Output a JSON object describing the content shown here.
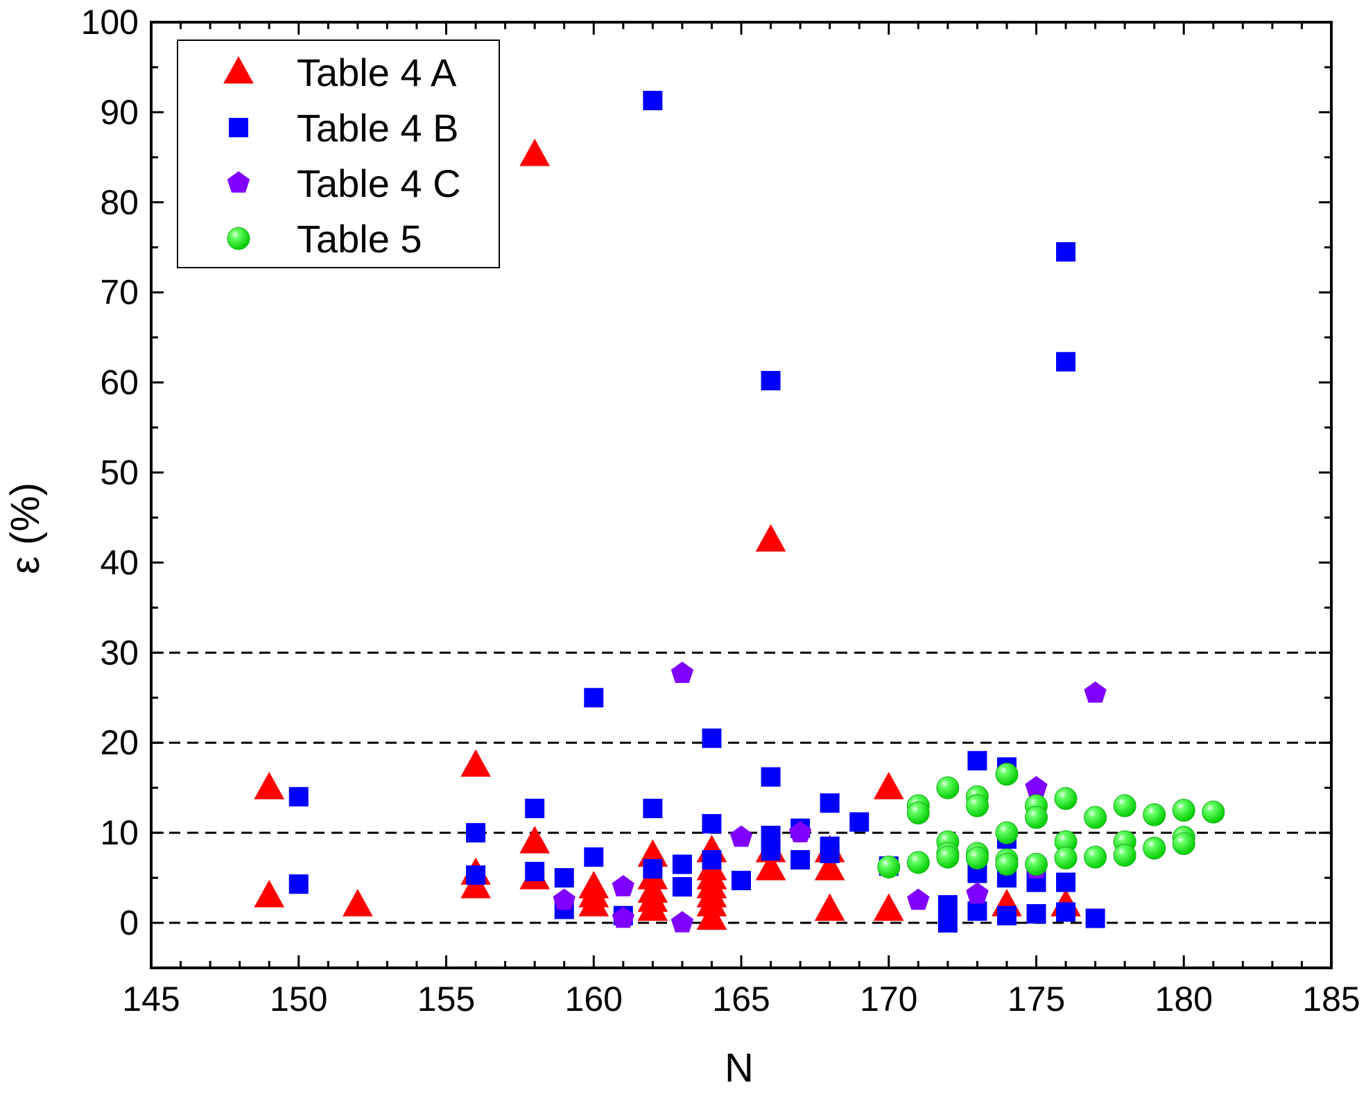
{
  "chart_data": {
    "type": "scatter",
    "title": "",
    "xlabel": "N",
    "ylabel": "ε (%)",
    "xlim": [
      145,
      185
    ],
    "ylim": [
      -5,
      100
    ],
    "x_ticks": [
      145,
      150,
      155,
      160,
      165,
      170,
      175,
      180,
      185
    ],
    "x_tick_labels": [
      "145",
      "150",
      "155",
      "160",
      "165",
      "170",
      "175",
      "180",
      "185"
    ],
    "y_ticks": [
      0,
      10,
      20,
      30,
      40,
      50,
      60,
      70,
      80,
      90,
      100
    ],
    "y_tick_labels": [
      "0",
      "10",
      "20",
      "30",
      "40",
      "50",
      "60",
      "70",
      "80",
      "90",
      "100"
    ],
    "reference_lines_y": [
      0,
      10,
      20,
      30
    ],
    "grid": false,
    "legend_position": "top-left",
    "series": [
      {
        "name": "Table 4 A",
        "marker": "triangle",
        "color": "#ff0000",
        "points": [
          [
            149,
            15
          ],
          [
            149,
            3
          ],
          [
            152,
            2
          ],
          [
            156,
            17.5
          ],
          [
            156,
            5.5
          ],
          [
            156,
            4
          ],
          [
            158,
            85.3
          ],
          [
            158,
            9
          ],
          [
            158,
            5
          ],
          [
            160,
            4
          ],
          [
            160,
            3
          ],
          [
            160,
            2
          ],
          [
            162,
            7.5
          ],
          [
            162,
            5
          ],
          [
            162,
            3.5
          ],
          [
            162,
            2.5
          ],
          [
            162,
            1.5
          ],
          [
            164,
            8
          ],
          [
            164,
            6
          ],
          [
            164,
            5
          ],
          [
            164,
            4
          ],
          [
            164,
            3
          ],
          [
            164,
            2
          ],
          [
            164,
            0.5
          ],
          [
            166,
            42.5
          ],
          [
            166,
            6
          ],
          [
            166,
            8
          ],
          [
            168,
            8
          ],
          [
            168,
            6
          ],
          [
            168,
            1.5
          ],
          [
            170,
            15
          ],
          [
            170,
            1.5
          ],
          [
            174,
            2
          ],
          [
            176,
            2
          ]
        ]
      },
      {
        "name": "Table 4 B",
        "marker": "square",
        "color": "#0000ff",
        "points": [
          [
            150,
            14
          ],
          [
            150,
            4.3
          ],
          [
            156,
            10
          ],
          [
            156,
            5.3
          ],
          [
            158,
            12.7
          ],
          [
            158,
            5.7
          ],
          [
            159,
            5
          ],
          [
            159,
            1.5
          ],
          [
            160,
            25
          ],
          [
            160,
            7.3
          ],
          [
            161,
            0.8
          ],
          [
            162,
            91.3
          ],
          [
            162,
            12.7
          ],
          [
            162,
            6
          ],
          [
            163,
            6.5
          ],
          [
            163,
            4
          ],
          [
            164,
            20.5
          ],
          [
            164,
            11
          ],
          [
            164,
            7
          ],
          [
            165,
            4.7
          ],
          [
            166,
            60.2
          ],
          [
            166,
            16.2
          ],
          [
            166,
            9.7
          ],
          [
            166,
            8
          ],
          [
            167,
            10.5
          ],
          [
            167,
            7
          ],
          [
            168,
            13.3
          ],
          [
            168,
            8.5
          ],
          [
            168,
            7.7
          ],
          [
            169,
            11.2
          ],
          [
            170,
            6.3
          ],
          [
            172,
            2
          ],
          [
            172,
            0
          ],
          [
            173,
            18
          ],
          [
            173,
            5.5
          ],
          [
            173,
            1.3
          ],
          [
            174,
            17.3
          ],
          [
            174,
            9.3
          ],
          [
            174,
            5
          ],
          [
            174,
            0.8
          ],
          [
            175,
            6.2
          ],
          [
            175,
            4.5
          ],
          [
            175,
            1
          ],
          [
            176,
            74.5
          ],
          [
            176,
            62.3
          ],
          [
            176,
            4.5
          ],
          [
            176,
            1.2
          ],
          [
            177,
            0.5
          ]
        ]
      },
      {
        "name": "Table 4 C",
        "marker": "pentagon",
        "color": "#8000ff",
        "points": [
          [
            159,
            2.5
          ],
          [
            161,
            4
          ],
          [
            161,
            0.5
          ],
          [
            163,
            27.7
          ],
          [
            163,
            0
          ],
          [
            165,
            9.5
          ],
          [
            167,
            10
          ],
          [
            171,
            2.5
          ],
          [
            173,
            3.2
          ],
          [
            175,
            15
          ],
          [
            175,
            6
          ],
          [
            177,
            25.5
          ]
        ]
      },
      {
        "name": "Table 5",
        "marker": "circle",
        "color": "#00ff00",
        "points": [
          [
            170,
            6.2
          ],
          [
            171,
            13
          ],
          [
            171,
            12.2
          ],
          [
            171,
            6.7
          ],
          [
            172,
            15
          ],
          [
            172,
            9
          ],
          [
            172,
            7.7
          ],
          [
            172,
            7.3
          ],
          [
            173,
            14
          ],
          [
            173,
            13
          ],
          [
            173,
            7.7
          ],
          [
            173,
            7.2
          ],
          [
            174,
            16.5
          ],
          [
            174,
            10
          ],
          [
            174,
            7
          ],
          [
            174,
            6.5
          ],
          [
            175,
            13
          ],
          [
            175,
            11.7
          ],
          [
            175,
            6.5
          ],
          [
            176,
            13.8
          ],
          [
            176,
            9
          ],
          [
            176,
            7.2
          ],
          [
            177,
            11.7
          ],
          [
            177,
            7.3
          ],
          [
            178,
            13
          ],
          [
            178,
            9
          ],
          [
            178,
            7.5
          ],
          [
            179,
            12
          ],
          [
            179,
            8.3
          ],
          [
            180,
            12.5
          ],
          [
            180,
            9.5
          ],
          [
            180,
            8.8
          ],
          [
            181,
            12.3
          ]
        ]
      }
    ]
  }
}
